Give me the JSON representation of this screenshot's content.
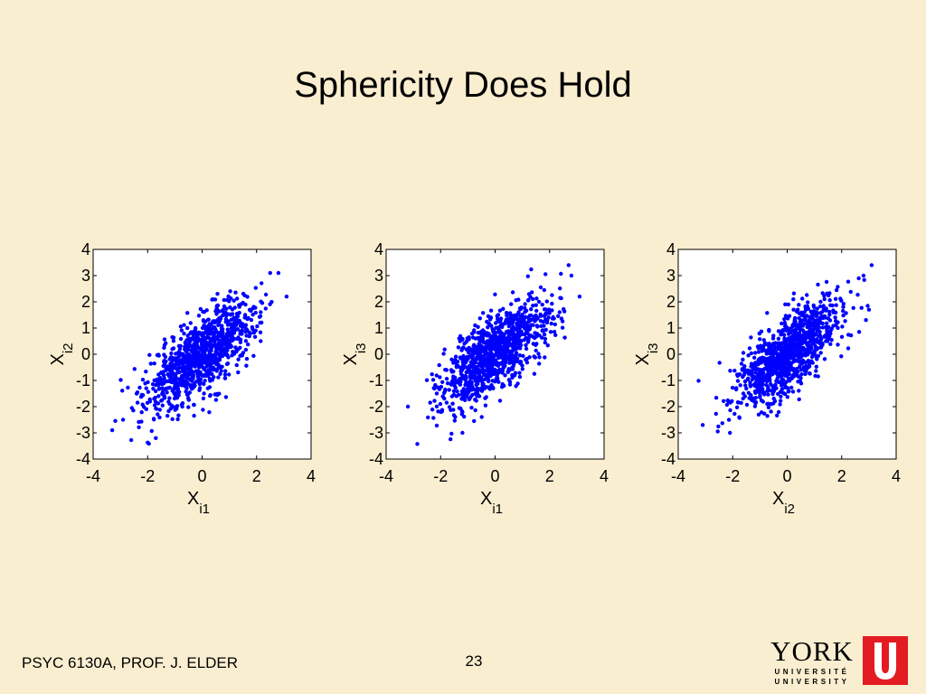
{
  "slide": {
    "title": "Sphericity Does Hold",
    "footer_left": "PSYC 6130A, PROF. J. ELDER",
    "page_number": "23",
    "logo": {
      "wordmark": "YORK",
      "line1": "UNIVERSITÉ",
      "line2": "UNIVERSITY",
      "accent_color": "#e31b23"
    },
    "colors": {
      "background": "#faeed0",
      "points": "#0000ff",
      "plot_bg": "#ffffff"
    }
  },
  "chart_data": [
    {
      "type": "scatter",
      "xlabel": "X",
      "xlabel_sub": "i1",
      "ylabel": "X",
      "ylabel_sub": "i2",
      "xlim": [
        -4,
        4
      ],
      "ylim": [
        -4,
        4
      ],
      "xticks": [
        -4,
        -2,
        0,
        2,
        4
      ],
      "yticks": [
        4,
        3,
        2,
        1,
        0,
        -1,
        -2,
        -3,
        -4
      ],
      "grid": false,
      "n_points": 1000,
      "correlation": 0.7,
      "mean": [
        0,
        0
      ],
      "sd": [
        1,
        1
      ],
      "series": [
        {
          "color": "#0000ff"
        }
      ],
      "annotated_points": [
        {
          "x": 2.5,
          "y": 3.1
        },
        {
          "x": 2.8,
          "y": 3.1
        },
        {
          "x": 3.1,
          "y": 2.2
        },
        {
          "x": -3.3,
          "y": -2.9
        },
        {
          "x": -1.7,
          "y": -3.2
        },
        {
          "x": -2.9,
          "y": -2.5
        }
      ]
    },
    {
      "type": "scatter",
      "xlabel": "X",
      "xlabel_sub": "i1",
      "ylabel": "X",
      "ylabel_sub": "i3",
      "xlim": [
        -4,
        4
      ],
      "ylim": [
        -4,
        4
      ],
      "xticks": [
        -4,
        -2,
        0,
        2,
        4
      ],
      "yticks": [
        4,
        3,
        2,
        1,
        0,
        -1,
        -2,
        -3,
        -4
      ],
      "grid": false,
      "n_points": 1000,
      "correlation": 0.7,
      "mean": [
        0,
        0
      ],
      "sd": [
        1,
        1
      ],
      "series": [
        {
          "color": "#0000ff"
        }
      ],
      "annotated_points": [
        {
          "x": 2.7,
          "y": 3.4
        },
        {
          "x": 2.8,
          "y": 3.0
        },
        {
          "x": 3.1,
          "y": 2.2
        },
        {
          "x": -3.2,
          "y": -2.0
        },
        {
          "x": -1.2,
          "y": -3.0
        }
      ]
    },
    {
      "type": "scatter",
      "xlabel": "X",
      "xlabel_sub": "i2",
      "ylabel": "X",
      "ylabel_sub": "i3",
      "xlim": [
        -4,
        4
      ],
      "ylim": [
        -4,
        4
      ],
      "xticks": [
        -4,
        -2,
        0,
        2,
        4
      ],
      "yticks": [
        4,
        3,
        2,
        1,
        0,
        -1,
        -2,
        -3,
        -4
      ],
      "grid": false,
      "n_points": 1000,
      "correlation": 0.7,
      "mean": [
        0,
        0
      ],
      "sd": [
        1,
        1
      ],
      "series": [
        {
          "color": "#0000ff"
        }
      ],
      "annotated_points": [
        {
          "x": 3.1,
          "y": 3.4
        },
        {
          "x": 2.8,
          "y": 3.0
        },
        {
          "x": 3.0,
          "y": 1.7
        },
        {
          "x": -3.1,
          "y": -2.7
        },
        {
          "x": -2.1,
          "y": -3.0
        }
      ]
    }
  ]
}
